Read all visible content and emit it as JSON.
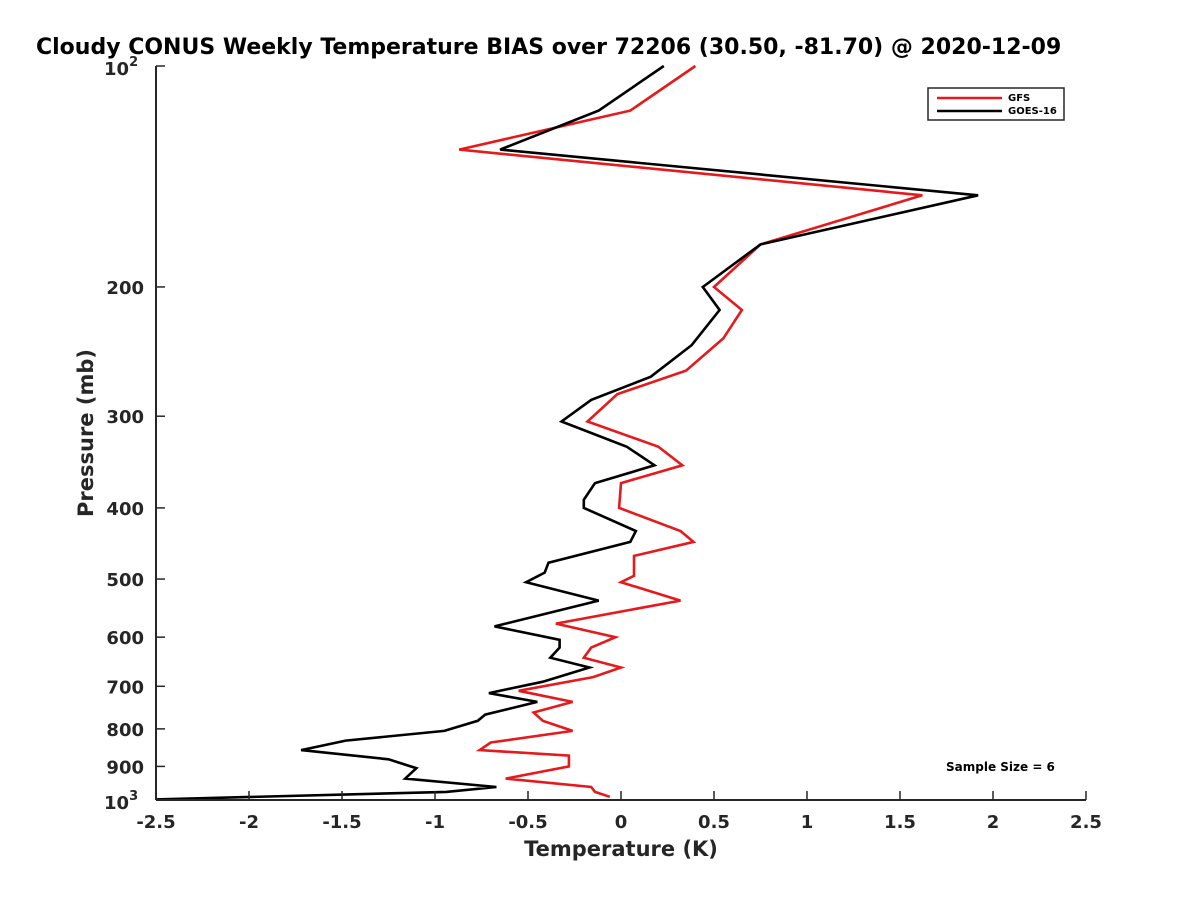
{
  "chart_data": {
    "type": "line",
    "title": "Cloudy CONUS Weekly Temperature BIAS over 72206 (30.50, -81.70) @ 2020-12-09",
    "xlabel": "Temperature (K)",
    "ylabel": "Pressure (mb)",
    "xlim": [
      -2.5,
      2.5
    ],
    "ylim": [
      100,
      1000
    ],
    "y_scale": "log",
    "y_reversed": true,
    "grid": false,
    "legend_position": "top-right",
    "x_ticks": [
      "-2.5",
      "-2",
      "-1.5",
      "-1",
      "-0.5",
      "0",
      "0.5",
      "1",
      "1.5",
      "2",
      "2.5"
    ],
    "x_tick_values": [
      -2.5,
      -2,
      -1.5,
      -1,
      -0.5,
      0,
      0.5,
      1,
      1.5,
      2,
      2.5
    ],
    "y_ticks": [
      {
        "value": 100,
        "base": "10",
        "exp": "2"
      },
      {
        "value": 200,
        "label": "200"
      },
      {
        "value": 300,
        "label": "300"
      },
      {
        "value": 400,
        "label": "400"
      },
      {
        "value": 500,
        "label": "500"
      },
      {
        "value": 600,
        "label": "600"
      },
      {
        "value": 700,
        "label": "700"
      },
      {
        "value": 800,
        "label": "800"
      },
      {
        "value": 900,
        "label": "900"
      },
      {
        "value": 1000,
        "base": "10",
        "exp": "3"
      }
    ],
    "annotation": "Sample Size = 6",
    "series": [
      {
        "name": "GFS",
        "color": "#e41a1c",
        "points": [
          [
            0.4,
            100
          ],
          [
            0.05,
            115
          ],
          [
            -0.87,
            130
          ],
          [
            1.62,
            150
          ],
          [
            0.75,
            175
          ],
          [
            0.5,
            200
          ],
          [
            0.65,
            215
          ],
          [
            0.55,
            235
          ],
          [
            0.35,
            260
          ],
          [
            -0.02,
            280
          ],
          [
            -0.18,
            305
          ],
          [
            0.2,
            330
          ],
          [
            0.33,
            350
          ],
          [
            0.0,
            370
          ],
          [
            -0.01,
            400
          ],
          [
            0.32,
            430
          ],
          [
            0.39,
            445
          ],
          [
            0.07,
            465
          ],
          [
            0.07,
            495
          ],
          [
            0.0,
            505
          ],
          [
            0.32,
            535
          ],
          [
            -0.35,
            575
          ],
          [
            -0.03,
            600
          ],
          [
            -0.16,
            620
          ],
          [
            -0.2,
            640
          ],
          [
            0.0,
            660
          ],
          [
            -0.15,
            680
          ],
          [
            -0.55,
            710
          ],
          [
            -0.26,
            735
          ],
          [
            -0.47,
            760
          ],
          [
            -0.42,
            780
          ],
          [
            -0.26,
            805
          ],
          [
            -0.7,
            835
          ],
          [
            -0.76,
            855
          ],
          [
            -0.28,
            870
          ],
          [
            -0.28,
            900
          ],
          [
            -0.62,
            935
          ],
          [
            -0.16,
            960
          ],
          [
            -0.14,
            975
          ],
          [
            -0.06,
            990
          ]
        ]
      },
      {
        "name": "GOES-16",
        "color": "#000000",
        "points": [
          [
            0.23,
            100
          ],
          [
            -0.12,
            115
          ],
          [
            -0.65,
            130
          ],
          [
            1.92,
            150
          ],
          [
            0.75,
            175
          ],
          [
            0.44,
            200
          ],
          [
            0.53,
            215
          ],
          [
            0.38,
            240
          ],
          [
            0.16,
            265
          ],
          [
            -0.16,
            285
          ],
          [
            -0.32,
            305
          ],
          [
            0.03,
            330
          ],
          [
            0.18,
            350
          ],
          [
            -0.14,
            370
          ],
          [
            -0.2,
            390
          ],
          [
            -0.2,
            400
          ],
          [
            0.08,
            430
          ],
          [
            0.05,
            445
          ],
          [
            -0.39,
            475
          ],
          [
            -0.41,
            490
          ],
          [
            -0.51,
            505
          ],
          [
            -0.12,
            535
          ],
          [
            -0.68,
            580
          ],
          [
            -0.33,
            605
          ],
          [
            -0.33,
            620
          ],
          [
            -0.38,
            640
          ],
          [
            -0.17,
            660
          ],
          [
            -0.42,
            690
          ],
          [
            -0.71,
            715
          ],
          [
            -0.45,
            735
          ],
          [
            -0.73,
            765
          ],
          [
            -0.77,
            780
          ],
          [
            -0.95,
            805
          ],
          [
            -1.48,
            830
          ],
          [
            -1.72,
            855
          ],
          [
            -1.25,
            880
          ],
          [
            -1.1,
            905
          ],
          [
            -1.16,
            935
          ],
          [
            -0.67,
            960
          ],
          [
            -0.94,
            975
          ],
          [
            -2.5,
            998
          ]
        ]
      }
    ]
  }
}
